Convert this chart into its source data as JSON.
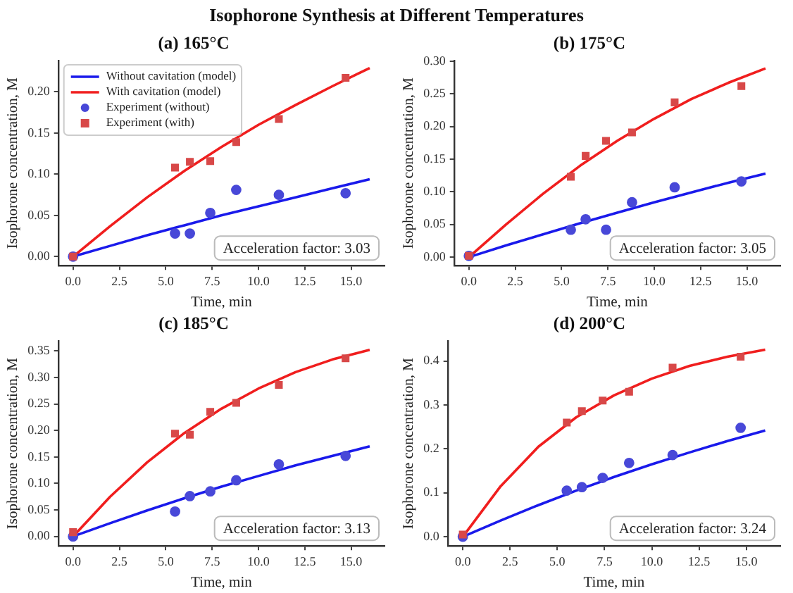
{
  "chart_data": [
    {
      "type": "scatter",
      "title": "(a) 165°C",
      "xlabel": "Time, min",
      "ylabel": "Isophorone concentration, M",
      "annotations": [
        "Isophorone Synthesis at Different Temperatures",
        "Acceleration factor: 3.03"
      ],
      "legend": "top left",
      "grid": false,
      "xlim": [
        -0.8,
        16.8
      ],
      "xticks": [
        {
          "value": 0,
          "label": "0.0"
        },
        {
          "value": 2.5,
          "label": "2.5"
        },
        {
          "value": 5,
          "label": "5.0"
        },
        {
          "value": 7.5,
          "label": "7.5"
        },
        {
          "value": 10,
          "label": "10.0"
        },
        {
          "value": 12.5,
          "label": "12.5"
        },
        {
          "value": 15,
          "label": "15.0"
        }
      ],
      "ylim": [
        -0.011,
        0.238
      ],
      "yticks": [
        {
          "value": 0,
          "label": "0.00"
        },
        {
          "value": 0.05,
          "label": "0.05"
        },
        {
          "value": 0.1,
          "label": "0.10"
        },
        {
          "value": 0.15,
          "label": "0.15"
        },
        {
          "value": 0.2,
          "label": "0.20"
        }
      ],
      "series": [
        {
          "name": "Without cavitation (model)",
          "type": "line",
          "marker": "none",
          "color": "#1a1aeb",
          "x": [
            0,
            2,
            4,
            6,
            8,
            10,
            12,
            14,
            16
          ],
          "values": [
            0,
            0.013,
            0.026,
            0.038,
            0.05,
            0.061,
            0.072,
            0.083,
            0.094
          ]
        },
        {
          "name": "With cavitation (model)",
          "type": "line",
          "marker": "none",
          "color": "#f01e1e",
          "x": [
            0,
            2,
            4,
            6,
            8,
            10,
            12,
            14,
            16
          ],
          "values": [
            0,
            0.037,
            0.072,
            0.104,
            0.133,
            0.16,
            0.184,
            0.207,
            0.229
          ]
        },
        {
          "name": "Experiment (without)",
          "type": "scatter",
          "marker": "circle",
          "color": "#4848d8",
          "x": [
            0,
            5.5,
            6.3,
            7.4,
            8.8,
            11.1,
            14.7
          ],
          "values": [
            0,
            0.028,
            0.028,
            0.053,
            0.081,
            0.075,
            0.077
          ]
        },
        {
          "name": "Experiment (with)",
          "type": "scatter",
          "marker": "square",
          "color": "#d84848",
          "x": [
            0,
            5.5,
            6.3,
            7.4,
            8.8,
            11.1,
            14.7
          ],
          "values": [
            0,
            0.108,
            0.115,
            0.116,
            0.139,
            0.167,
            0.217
          ]
        }
      ]
    },
    {
      "type": "scatter",
      "title": "(b) 175°C",
      "xlabel": "Time, min",
      "ylabel": "Isophorone concentration, M",
      "annotations": [
        "Acceleration factor: 3.05"
      ],
      "grid": false,
      "xlim": [
        -0.8,
        16.8
      ],
      "xticks": [
        {
          "value": 0,
          "label": "0.0"
        },
        {
          "value": 2.5,
          "label": "2.5"
        },
        {
          "value": 5,
          "label": "5.0"
        },
        {
          "value": 7.5,
          "label": "7.5"
        },
        {
          "value": 10,
          "label": "10.0"
        },
        {
          "value": 12.5,
          "label": "12.5"
        },
        {
          "value": 15,
          "label": "15.0"
        }
      ],
      "ylim": [
        -0.013,
        0.301
      ],
      "yticks": [
        {
          "value": 0,
          "label": "0.00"
        },
        {
          "value": 0.05,
          "label": "0.05"
        },
        {
          "value": 0.1,
          "label": "0.10"
        },
        {
          "value": 0.15,
          "label": "0.15"
        },
        {
          "value": 0.2,
          "label": "0.20"
        },
        {
          "value": 0.25,
          "label": "0.25"
        },
        {
          "value": 0.3,
          "label": "0.30"
        }
      ],
      "series": [
        {
          "type": "line",
          "marker": "none",
          "color": "#1a1aeb",
          "x": [
            0,
            2,
            4,
            6,
            8,
            10,
            12,
            14,
            16
          ],
          "values": [
            0,
            0.018,
            0.035,
            0.052,
            0.068,
            0.084,
            0.099,
            0.114,
            0.128
          ]
        },
        {
          "type": "line",
          "marker": "none",
          "color": "#f01e1e",
          "x": [
            0,
            2,
            4,
            6,
            8,
            10,
            12,
            14,
            16
          ],
          "values": [
            0,
            0.05,
            0.097,
            0.14,
            0.178,
            0.212,
            0.242,
            0.267,
            0.289
          ]
        },
        {
          "type": "scatter",
          "marker": "circle",
          "color": "#4848d8",
          "x": [
            0,
            5.5,
            6.3,
            7.4,
            8.8,
            11.1,
            14.7
          ],
          "values": [
            0.002,
            0.042,
            0.058,
            0.042,
            0.084,
            0.107,
            0.116
          ]
        },
        {
          "type": "scatter",
          "marker": "square",
          "color": "#d84848",
          "x": [
            0,
            5.5,
            6.3,
            7.4,
            8.8,
            11.1,
            14.7
          ],
          "values": [
            0.002,
            0.123,
            0.155,
            0.178,
            0.191,
            0.237,
            0.262
          ]
        }
      ]
    },
    {
      "type": "scatter",
      "title": "(c) 185°C",
      "xlabel": "Time, min",
      "ylabel": "Isophorone concentration, M",
      "annotations": [
        "Acceleration factor: 3.13"
      ],
      "grid": false,
      "xlim": [
        -0.8,
        16.8
      ],
      "xticks": [
        {
          "value": 0,
          "label": "0.0"
        },
        {
          "value": 2.5,
          "label": "2.5"
        },
        {
          "value": 5,
          "label": "5.0"
        },
        {
          "value": 7.5,
          "label": "7.5"
        },
        {
          "value": 10,
          "label": "10.0"
        },
        {
          "value": 12.5,
          "label": "12.5"
        },
        {
          "value": 15,
          "label": "15.0"
        }
      ],
      "ylim": [
        -0.018,
        0.369
      ],
      "yticks": [
        {
          "value": 0,
          "label": "0.00"
        },
        {
          "value": 0.05,
          "label": "0.05"
        },
        {
          "value": 0.1,
          "label": "0.10"
        },
        {
          "value": 0.15,
          "label": "0.15"
        },
        {
          "value": 0.2,
          "label": "0.20"
        },
        {
          "value": 0.25,
          "label": "0.25"
        },
        {
          "value": 0.3,
          "label": "0.30"
        },
        {
          "value": 0.35,
          "label": "0.35"
        }
      ],
      "series": [
        {
          "type": "line",
          "marker": "none",
          "color": "#1a1aeb",
          "x": [
            0,
            2,
            4,
            6,
            8,
            10,
            12,
            14,
            16
          ],
          "values": [
            0,
            0.025,
            0.049,
            0.072,
            0.094,
            0.114,
            0.134,
            0.152,
            0.17
          ]
        },
        {
          "type": "line",
          "marker": "none",
          "color": "#f01e1e",
          "x": [
            0,
            2,
            4,
            6,
            8,
            10,
            12,
            14,
            16
          ],
          "values": [
            0,
            0.075,
            0.14,
            0.195,
            0.241,
            0.279,
            0.31,
            0.334,
            0.352
          ]
        },
        {
          "type": "scatter",
          "marker": "circle",
          "color": "#4848d8",
          "x": [
            0,
            5.5,
            6.3,
            7.4,
            8.8,
            11.1,
            14.7
          ],
          "values": [
            0,
            0.047,
            0.076,
            0.085,
            0.106,
            0.136,
            0.152
          ]
        },
        {
          "type": "scatter",
          "marker": "square",
          "color": "#d84848",
          "x": [
            0,
            5.5,
            6.3,
            7.4,
            8.8,
            11.1,
            14.7
          ],
          "values": [
            0.008,
            0.194,
            0.192,
            0.235,
            0.252,
            0.286,
            0.336
          ]
        }
      ]
    },
    {
      "type": "scatter",
      "title": "(d) 200°C",
      "xlabel": "Time, min",
      "ylabel": "Isophorone concentration, M",
      "annotations": [
        "Acceleration factor: 3.24"
      ],
      "grid": false,
      "xlim": [
        -0.8,
        16.8
      ],
      "xticks": [
        {
          "value": 0,
          "label": "0.0"
        },
        {
          "value": 2.5,
          "label": "2.5"
        },
        {
          "value": 5,
          "label": "5.0"
        },
        {
          "value": 7.5,
          "label": "7.5"
        },
        {
          "value": 10,
          "label": "10.0"
        },
        {
          "value": 12.5,
          "label": "12.5"
        },
        {
          "value": 15,
          "label": "15.0"
        }
      ],
      "ylim": [
        -0.021,
        0.446
      ],
      "yticks": [
        {
          "value": 0,
          "label": "0.0"
        },
        {
          "value": 0.1,
          "label": "0.1"
        },
        {
          "value": 0.2,
          "label": "0.2"
        },
        {
          "value": 0.3,
          "label": "0.3"
        },
        {
          "value": 0.4,
          "label": "0.4"
        }
      ],
      "series": [
        {
          "type": "line",
          "marker": "none",
          "color": "#1a1aeb",
          "x": [
            0,
            2,
            4,
            6,
            8,
            10,
            12,
            14,
            16
          ],
          "values": [
            0,
            0.037,
            0.072,
            0.105,
            0.136,
            0.165,
            0.192,
            0.218,
            0.242
          ]
        },
        {
          "type": "line",
          "marker": "none",
          "color": "#f01e1e",
          "x": [
            0,
            2,
            4,
            6,
            8,
            10,
            12,
            14,
            16
          ],
          "values": [
            0,
            0.115,
            0.205,
            0.272,
            0.322,
            0.36,
            0.389,
            0.41,
            0.426
          ]
        },
        {
          "type": "scatter",
          "marker": "circle",
          "color": "#4848d8",
          "x": [
            0,
            5.5,
            6.3,
            7.4,
            8.8,
            11.1,
            14.7
          ],
          "values": [
            0,
            0.105,
            0.113,
            0.134,
            0.168,
            0.186,
            0.248
          ]
        },
        {
          "type": "scatter",
          "marker": "square",
          "color": "#d84848",
          "x": [
            0,
            5.5,
            6.3,
            7.4,
            8.8,
            11.1,
            14.7
          ],
          "values": [
            0.005,
            0.26,
            0.286,
            0.31,
            0.33,
            0.385,
            0.41
          ]
        }
      ]
    }
  ]
}
